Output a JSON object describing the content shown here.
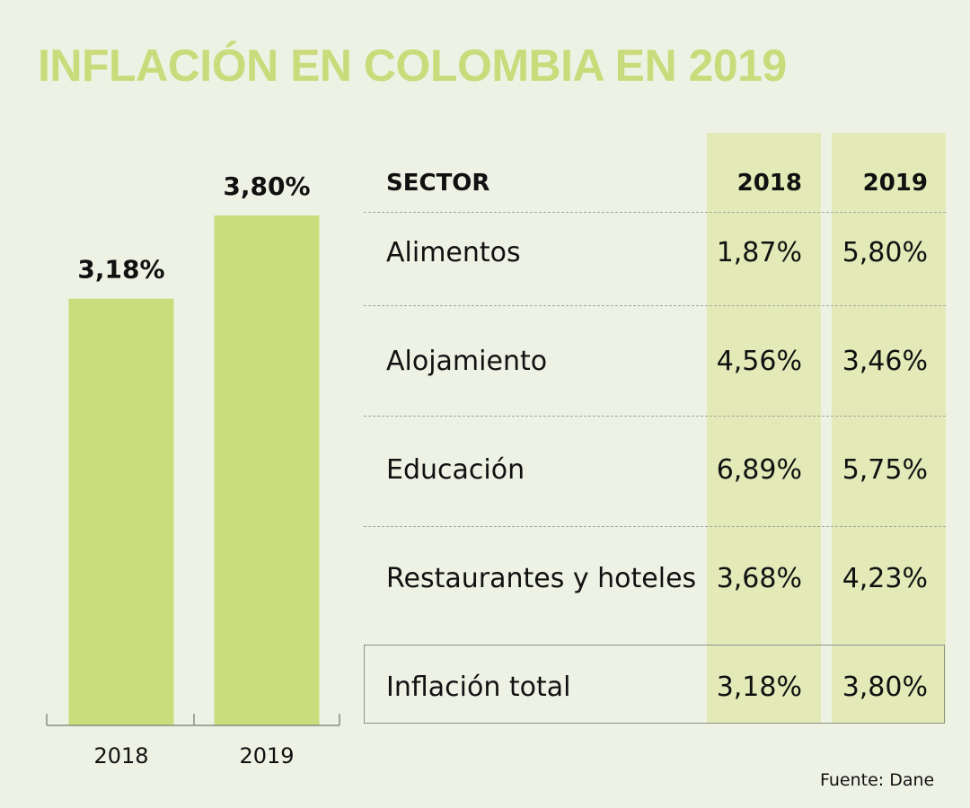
{
  "title": "INFLACIÓN EN COLOMBIA EN 2019",
  "chart_data": [
    {
      "type": "bar",
      "categories": [
        "2018",
        "2019"
      ],
      "values": [
        3.18,
        3.8
      ],
      "data_labels": [
        "3,18%",
        "3,80%"
      ],
      "title": "",
      "xlabel": "",
      "ylabel": "",
      "color": "#cadc7b"
    },
    {
      "type": "table",
      "columns": [
        "SECTOR",
        "2018",
        "2019"
      ],
      "rows": [
        {
          "sector": "Alimentos",
          "v2018": "1,87%",
          "v2019": "5,80%"
        },
        {
          "sector": "Alojamiento",
          "v2018": "4,56%",
          "v2019": "3,46%"
        },
        {
          "sector": "Educación",
          "v2018": "6,89%",
          "v2019": "5,75%"
        },
        {
          "sector": "Restaurantes y hoteles",
          "v2018": "3,68%",
          "v2019": "4,23%"
        },
        {
          "sector": "Inflación total",
          "v2018": "3,18%",
          "v2019": "3,80%"
        }
      ]
    }
  ],
  "source": "Fuente: Dane",
  "colors": {
    "background": "#eef2e4",
    "title": "#c9db7a",
    "bar": "#cadc7b",
    "column_highlight": "#e3eab8"
  }
}
